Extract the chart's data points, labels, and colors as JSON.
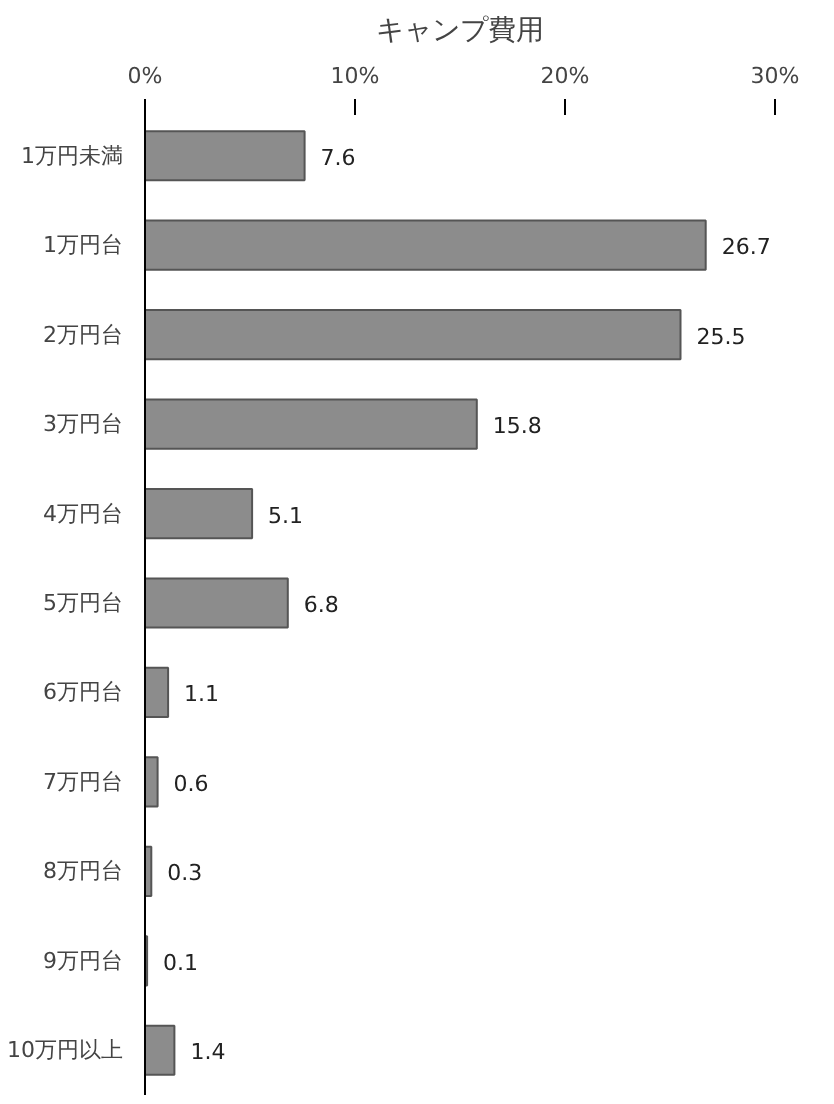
{
  "chart_data": {
    "type": "bar",
    "orientation": "horizontal",
    "title": "キャンプ費用",
    "categories": [
      "1万円未満",
      "1万円台",
      "2万円台",
      "3万円台",
      "4万円台",
      "5万円台",
      "6万円台",
      "7万円台",
      "8万円台",
      "9万円台",
      "10万円以上"
    ],
    "values": [
      7.6,
      26.7,
      25.5,
      15.8,
      5.1,
      6.8,
      1.1,
      0.6,
      0.3,
      0.1,
      1.4
    ],
    "color": "#8c8c8c",
    "xlim": [
      0,
      30
    ],
    "xticks": [
      {
        "value": 0,
        "label": "0%"
      },
      {
        "value": 10,
        "label": "10%"
      },
      {
        "value": 20,
        "label": "20%"
      },
      {
        "value": 30,
        "label": "30%"
      }
    ],
    "data_labels": true,
    "grid": false
  }
}
